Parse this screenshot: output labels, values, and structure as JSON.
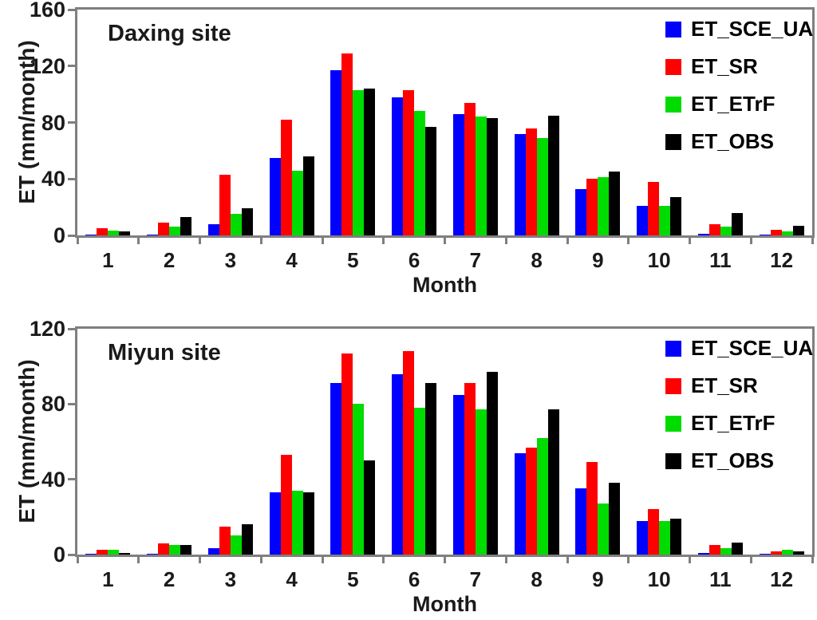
{
  "chart_data": [
    {
      "type": "bar",
      "title": "Daxing site",
      "xlabel": "Month",
      "ylabel": "ET (mm/month)",
      "ylim": [
        0,
        160
      ],
      "yticks": [
        0,
        40,
        80,
        120,
        160
      ],
      "categories": [
        "1",
        "2",
        "3",
        "4",
        "5",
        "6",
        "7",
        "8",
        "9",
        "10",
        "11",
        "12"
      ],
      "grid": false,
      "legend_position": "inside-top-right",
      "series": [
        {
          "name": "ET_SCE_UA",
          "color": "#0000FE",
          "values": [
            0.5,
            0.5,
            8,
            55,
            117,
            98,
            86,
            72,
            33,
            21,
            1,
            0.5
          ]
        },
        {
          "name": "ET_SR",
          "color": "#FE0000",
          "values": [
            5,
            9,
            43,
            82,
            129,
            103,
            94,
            76,
            40,
            38,
            8,
            4
          ]
        },
        {
          "name": "ET_ETrF",
          "color": "#00DB00",
          "values": [
            3.5,
            6,
            15,
            46,
            103,
            88,
            84,
            69,
            41,
            21,
            6,
            3
          ]
        },
        {
          "name": "ET_OBS",
          "color": "#000000",
          "values": [
            3,
            13,
            19,
            56,
            104,
            77,
            83,
            85,
            45,
            27,
            16,
            7
          ]
        }
      ]
    },
    {
      "type": "bar",
      "title": "Miyun site",
      "xlabel": "Month",
      "ylabel": "ET (mm/month)",
      "ylim": [
        0,
        120
      ],
      "yticks": [
        0,
        40,
        80,
        120
      ],
      "categories": [
        "1",
        "2",
        "3",
        "4",
        "5",
        "6",
        "7",
        "8",
        "9",
        "10",
        "11",
        "12"
      ],
      "grid": false,
      "legend_position": "inside-top-right",
      "series": [
        {
          "name": "ET_SCE_UA",
          "color": "#0000FE",
          "values": [
            0.5,
            0.5,
            3.5,
            33,
            91,
            96,
            85,
            54,
            35,
            18,
            1,
            0.5
          ]
        },
        {
          "name": "ET_SR",
          "color": "#FE0000",
          "values": [
            2.5,
            6,
            15,
            53,
            107,
            108,
            91,
            57,
            49,
            24,
            5,
            1.5
          ]
        },
        {
          "name": "ET_ETrF",
          "color": "#00DB00",
          "values": [
            2.5,
            5,
            10,
            34,
            80,
            78,
            77,
            62,
            27,
            18,
            3.5,
            2.5
          ]
        },
        {
          "name": "ET_OBS",
          "color": "#000000",
          "values": [
            1,
            5,
            16,
            33,
            50,
            91,
            97,
            77,
            38,
            19,
            6.5,
            1.5
          ]
        }
      ]
    }
  ]
}
